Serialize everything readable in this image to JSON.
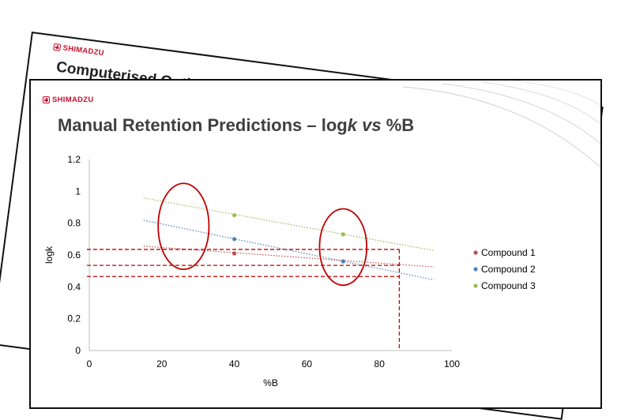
{
  "back_slide": {
    "logo_text": "SHIMADZU",
    "title": "Computerised Optimisation"
  },
  "front_slide": {
    "logo_text": "SHIMADZU",
    "title": {
      "part1": "Manual Retention Predictions – log",
      "k": "k",
      "part2": " ",
      "vs": "vs",
      "part3": " %B"
    }
  },
  "chart_data": {
    "type": "scatter",
    "title": "",
    "xlabel": "%B",
    "ylabel": "logk",
    "xlim": [
      0,
      100
    ],
    "ylim": [
      0,
      1.2
    ],
    "x_ticks": [
      0,
      20,
      40,
      60,
      80,
      100
    ],
    "y_ticks": [
      0,
      0.2,
      0.4,
      0.6,
      0.8,
      1,
      1.2
    ],
    "grid": false,
    "legend_position": "right",
    "trendlines": "dotted linear",
    "series": [
      {
        "name": "Compound 1",
        "color": "#c0504d",
        "points": [
          [
            40,
            0.61
          ],
          [
            70,
            0.56
          ]
        ],
        "trend_x": [
          15,
          95
        ],
        "trend_y": [
          0.655,
          0.525
        ]
      },
      {
        "name": "Compound 2",
        "color": "#4f81bd",
        "points": [
          [
            40,
            0.7
          ],
          [
            70,
            0.56
          ]
        ],
        "trend_x": [
          15,
          95
        ],
        "trend_y": [
          0.818,
          0.444
        ]
      },
      {
        "name": "Compound 3",
        "color": "#9bbb59",
        "points": [
          [
            40,
            0.85
          ],
          [
            70,
            0.73
          ]
        ],
        "trend_x": [
          15,
          95
        ],
        "trend_y": [
          0.958,
          0.628
        ]
      }
    ],
    "annotations": {
      "ellipses": [
        {
          "cx": 26,
          "cy": 0.78,
          "rx": 7,
          "ry": 0.27
        },
        {
          "cx": 70,
          "cy": 0.65,
          "rx": 6.5,
          "ry": 0.24
        }
      ],
      "dashed_h_lines": [
        0.635,
        0.535,
        0.465
      ],
      "dashed_v_line_x": 85.5,
      "color": "#c00000"
    }
  }
}
